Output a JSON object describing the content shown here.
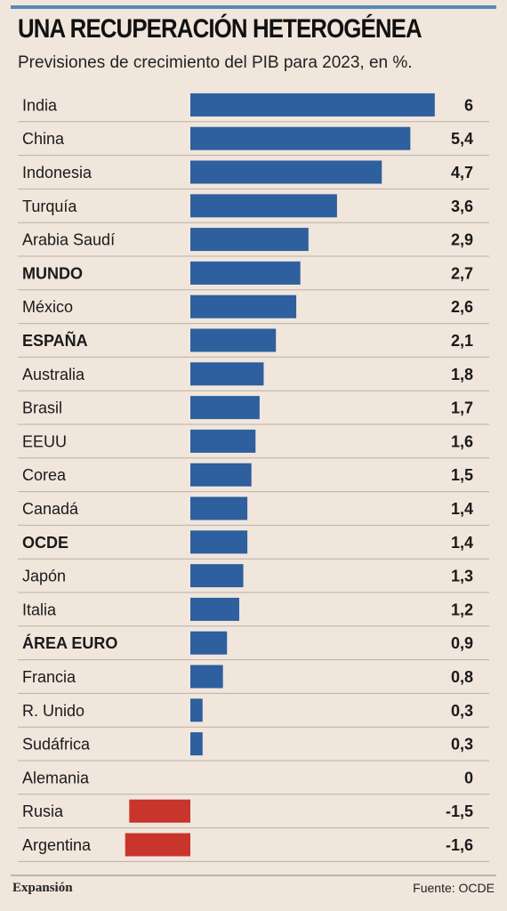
{
  "header": {
    "title": "UNA RECUPERACIÓN HETEROGÉNEA",
    "subtitle": "Previsiones de crecimiento del PIB para 2023, en %."
  },
  "footer": {
    "brand": "Expansión",
    "source": "Fuente: OCDE"
  },
  "colors": {
    "positive": "#2e5f9e",
    "negative": "#c8352c",
    "background": "#f1e6dc",
    "rule": "#5a87b8"
  },
  "chart_data": {
    "type": "bar",
    "orientation": "horizontal",
    "categories": [
      "India",
      "China",
      "Indonesia",
      "Turquía",
      "Arabia Saudí",
      "MUNDO",
      "México",
      "ESPAÑA",
      "Australia",
      "Brasil",
      "EEUU",
      "Corea",
      "Canadá",
      "OCDE",
      "Japón",
      "Italia",
      "ÁREA EURO",
      "Francia",
      "R. Unido",
      "Sudáfrica",
      "Alemania",
      "Rusia",
      "Argentina"
    ],
    "values": [
      6,
      5.4,
      4.7,
      3.6,
      2.9,
      2.7,
      2.6,
      2.1,
      1.8,
      1.7,
      1.6,
      1.5,
      1.4,
      1.4,
      1.3,
      1.2,
      0.9,
      0.8,
      0.3,
      0.3,
      0,
      -1.5,
      -1.6
    ],
    "value_labels": [
      "6",
      "5,4",
      "4,7",
      "3,6",
      "2,9",
      "2,7",
      "2,6",
      "2,1",
      "1,8",
      "1,7",
      "1,6",
      "1,5",
      "1,4",
      "1,4",
      "1,3",
      "1,2",
      "0,9",
      "0,8",
      "0,3",
      "0,3",
      "0",
      "-1,5",
      "-1,6"
    ],
    "bold_categories": [
      "MUNDO",
      "ESPAÑA",
      "OCDE",
      "ÁREA EURO"
    ],
    "xlim": [
      -1.6,
      6
    ],
    "grid": false,
    "legend": "none"
  }
}
